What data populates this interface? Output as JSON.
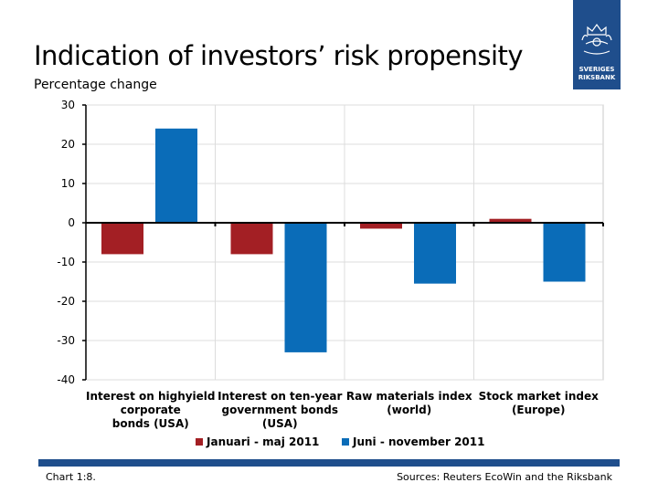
{
  "header": {
    "title": "Indication of investors’ risk propensity",
    "subtitle": "Percentage change"
  },
  "logo": {
    "icon": "crown-lion-emblem-icon",
    "line1": "SVERIGES",
    "line2": "RIKSBANK",
    "color": "#1f4e8c"
  },
  "footer": {
    "chart_number": "Chart 1:8.",
    "source": "Sources: Reuters EcoWin and the Riksbank"
  },
  "chart_data": {
    "type": "bar",
    "categories": [
      [
        "Interest on highyield",
        "corporate",
        "bonds (USA)"
      ],
      [
        "Interest on ten-year",
        "government bonds",
        "(USA)"
      ],
      [
        "Raw materials index",
        "(world)"
      ],
      [
        "Stock market index",
        "(Europe)"
      ]
    ],
    "series": [
      {
        "name": "Januari - maj 2011",
        "color": "#a31f24",
        "values": [
          -8,
          -8,
          -1.5,
          1
        ]
      },
      {
        "name": "Juni - november 2011",
        "color": "#0a6cb8",
        "values": [
          24,
          -33,
          -15.5,
          -15
        ]
      }
    ],
    "yticks": [
      30,
      20,
      10,
      0,
      -10,
      -20,
      -30,
      -40
    ],
    "ylim": [
      -40,
      30
    ],
    "grid": true,
    "legend": "bottom"
  }
}
